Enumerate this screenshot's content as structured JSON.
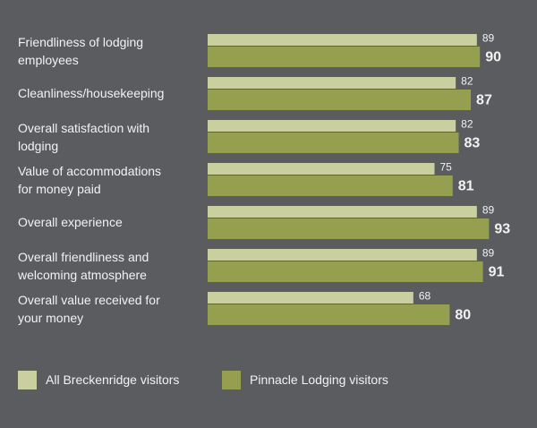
{
  "chart_data": {
    "type": "barh",
    "categories": [
      "Friendliness of lodging\nemployees",
      "Cleanliness/housekeeping",
      "Overall satisfaction with\nlodging",
      "Value of accommodations\nfor money paid",
      "Overall experience",
      "Overall friendliness and\nwelcoming atmosphere",
      "Overall value received for\nyour money"
    ],
    "series": [
      {
        "name": "All Breckenridge visitors",
        "color": "#c9cf9f",
        "values": [
          89,
          82,
          82,
          75,
          89,
          89,
          68
        ]
      },
      {
        "name": "Pinnacle Lodging visitors",
        "color": "#959f4f",
        "values": [
          90,
          87,
          83,
          81,
          93,
          91,
          80
        ]
      }
    ],
    "xlim": [
      0,
      100
    ]
  }
}
